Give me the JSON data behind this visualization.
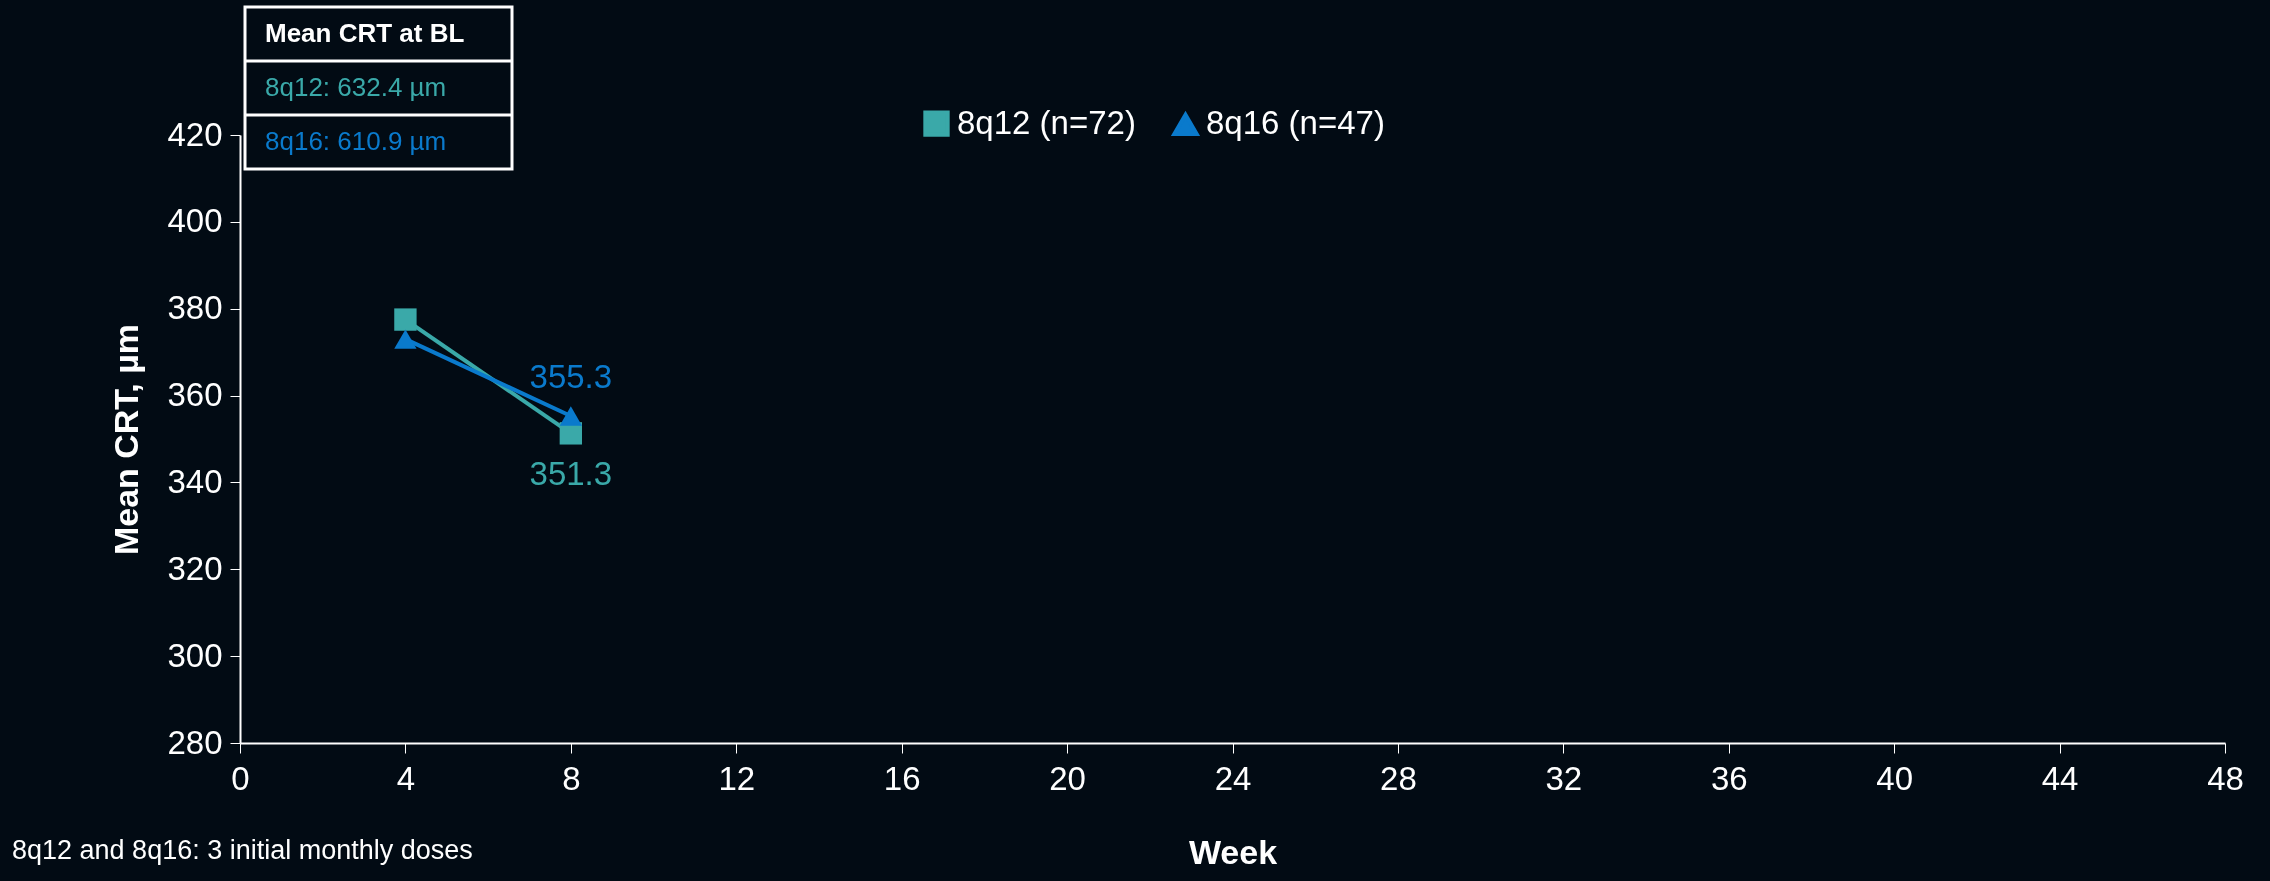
{
  "chart_data": {
    "type": "line",
    "xlabel": "Week",
    "ylabel": "Mean CRT, µm",
    "x": [
      4,
      8
    ],
    "series": [
      {
        "name": "8q12 (n=72)",
        "color": "#3aa9a9",
        "marker": "square",
        "values": [
          377.5,
          351.3
        ],
        "value_labels": [
          null,
          "351.3"
        ]
      },
      {
        "name": "8q16 (n=47)",
        "color": "#0a7acc",
        "marker": "triangle",
        "values": [
          373.0,
          355.3
        ],
        "value_labels": [
          null,
          "355.3"
        ]
      }
    ],
    "xlim": [
      0,
      48
    ],
    "xticks": [
      0,
      4,
      8,
      12,
      16,
      20,
      24,
      28,
      32,
      36,
      40,
      44,
      48
    ],
    "ylim": [
      280,
      420
    ],
    "yticks": [
      280,
      300,
      320,
      340,
      360,
      380,
      400,
      420
    ],
    "grid": false,
    "legend": "top",
    "line_style": "solid",
    "annotations": [
      "Mean CRT at BL",
      "8q12: 632.4 µm",
      "8q16: 610.9 µm",
      "8q12 and 8q16: 3 initial monthly doses"
    ]
  }
}
